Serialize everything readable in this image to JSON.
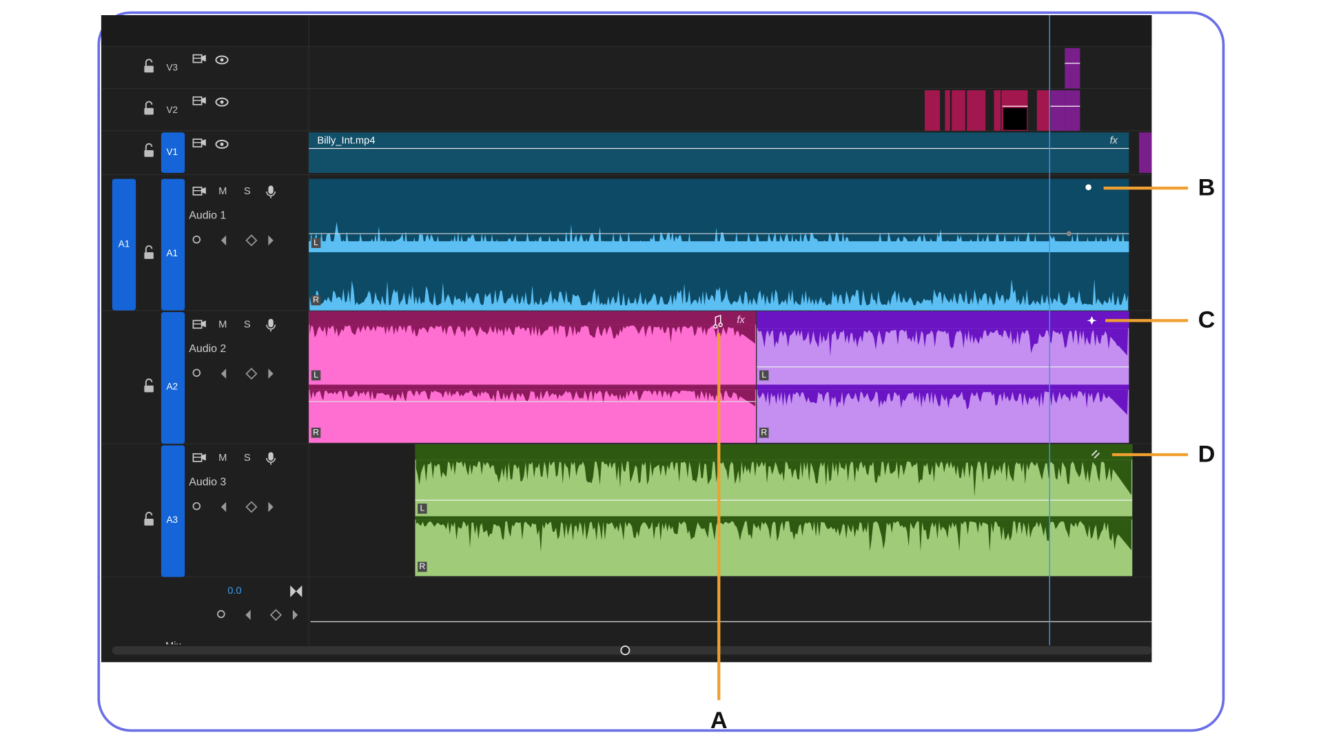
{
  "video_tracks": [
    {
      "label": "V3"
    },
    {
      "label": "V2"
    },
    {
      "label": "V1"
    }
  ],
  "video_clip": {
    "name": "Billy_Int.mp4"
  },
  "effect_label": "fx",
  "source_patch": "A1",
  "audio_tracks": [
    {
      "label": "A1",
      "name": "Audio 1",
      "mute": "M",
      "solo": "S"
    },
    {
      "label": "A2",
      "name": "Audio 2",
      "mute": "M",
      "solo": "S"
    },
    {
      "label": "A3",
      "name": "Audio 3",
      "mute": "M",
      "solo": "S"
    }
  ],
  "channels": {
    "left": "L",
    "right": "R"
  },
  "mix": {
    "volume": "0.0",
    "label": "Mix"
  },
  "callouts": [
    "A",
    "B",
    "C",
    "D"
  ]
}
